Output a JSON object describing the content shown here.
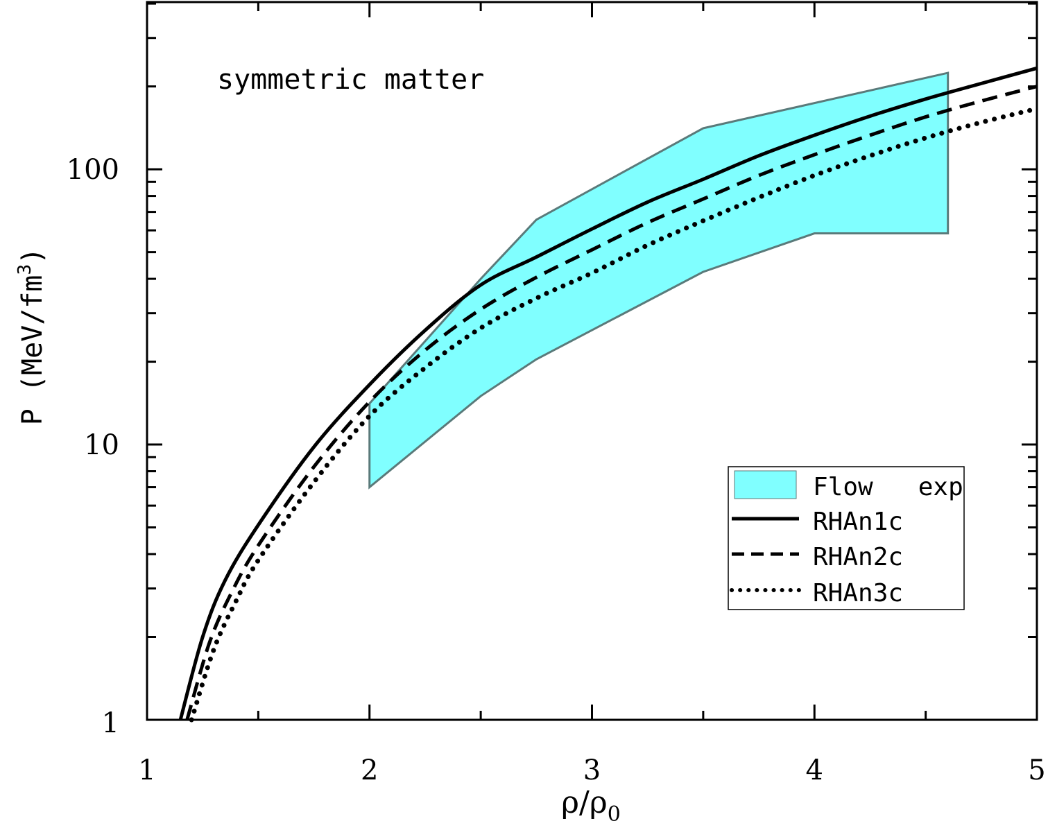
{
  "chart_data": {
    "type": "line",
    "title": "",
    "annotation": "symmetric matter",
    "xlabel": "ρ/ρ",
    "xlabel_sub": "0",
    "ylabel": "P (MeV/fm",
    "ylabel_sup": "3",
    "ylabel_end": ")",
    "xlim": [
      1,
      5
    ],
    "ylim": [
      1,
      405
    ],
    "yscale": "log",
    "xticks": [
      "1",
      "2",
      "3",
      "4",
      "5"
    ],
    "yticks": [
      "1",
      "10",
      "100"
    ],
    "legend_position": "bottom-right",
    "band": {
      "name": "Flow   exp",
      "color": "#80FFFF",
      "edge_color": "#5a7a7a",
      "upper": [
        [
          2,
          14.1
        ],
        [
          2.5,
          40
        ],
        [
          2.75,
          65.6
        ],
        [
          3.5,
          141
        ],
        [
          4.6,
          224
        ]
      ],
      "lower": [
        [
          2,
          7
        ],
        [
          2.5,
          15
        ],
        [
          2.75,
          20.4
        ],
        [
          3.5,
          42.4
        ],
        [
          4,
          58.5
        ],
        [
          4.6,
          58.5
        ]
      ]
    },
    "series": [
      {
        "name": "RHAn1c",
        "style": "solid",
        "x": [
          1.15,
          1.25,
          1.35,
          1.5,
          1.75,
          2,
          2.25,
          2.5,
          2.75,
          3,
          3.25,
          3.5,
          3.75,
          4,
          4.25,
          4.5,
          4.75,
          5
        ],
        "y": [
          1,
          2.0,
          3.2,
          5.1,
          9.8,
          16.5,
          26,
          38,
          48,
          60.7,
          76,
          92,
          112,
          133,
          156,
          180,
          205,
          233
        ]
      },
      {
        "name": "RHAn2c",
        "style": "dashed",
        "x": [
          1.18,
          1.28,
          1.38,
          1.5,
          1.75,
          2,
          2.25,
          2.5,
          2.75,
          3,
          3.25,
          3.5,
          3.75,
          4,
          4.25,
          4.5,
          4.75,
          5
        ],
        "y": [
          1,
          1.9,
          2.9,
          4.3,
          8.3,
          14.3,
          22,
          31,
          40.5,
          51,
          64,
          78,
          95,
          113,
          133,
          155,
          177,
          200
        ]
      },
      {
        "name": "RHAn3c",
        "style": "dotted",
        "x": [
          1.2,
          1.3,
          1.4,
          1.5,
          1.75,
          2,
          2.25,
          2.5,
          2.75,
          3,
          3.25,
          3.5,
          3.75,
          4,
          4.25,
          4.5,
          4.75,
          5
        ],
        "y": [
          1,
          1.8,
          2.7,
          3.8,
          7.3,
          12.7,
          19,
          26.5,
          34,
          42,
          53,
          65,
          79,
          95,
          112,
          130,
          148,
          166
        ]
      }
    ]
  }
}
